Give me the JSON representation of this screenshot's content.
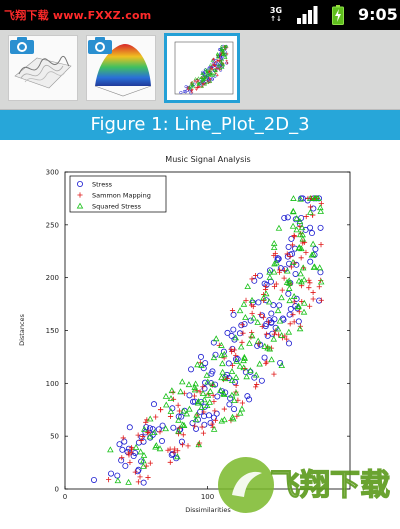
{
  "status_bar": {
    "watermark": "飞翔下载 www.FXXZ.com",
    "network": "3G",
    "time": "9:05"
  },
  "thumbnails": [
    {
      "name": "surface-plot-thumbnail",
      "icon": "camera-icon",
      "selected": false
    },
    {
      "name": "rainbow-surface-thumbnail",
      "icon": "camera-icon",
      "selected": false
    },
    {
      "name": "scatter-plot-thumbnail",
      "icon": "",
      "selected": true
    }
  ],
  "figure_title": "Figure 1: Line_Plot_2D_3",
  "watermark_badge": "飞翔下载",
  "chart_data": {
    "type": "scatter",
    "title": "Music Signal Analysis",
    "xlabel": "Dissimilarities",
    "ylabel": "Distances",
    "xlim": [
      0,
      200
    ],
    "ylim": [
      0,
      300
    ],
    "yticks": [
      "0",
      "50",
      "100",
      "150",
      "200",
      "250",
      "300"
    ],
    "xticks": [
      "0",
      "100"
    ],
    "legend": {
      "position": "top-left"
    },
    "series": [
      {
        "name": "Stress",
        "marker": "circle",
        "color": "#1a1ad0",
        "seed": 11
      },
      {
        "name": "Sammon Mapping",
        "marker": "plus",
        "color": "#e01818",
        "seed": 23
      },
      {
        "name": "Squared Stress",
        "marker": "triangle",
        "color": "#17c017",
        "seed": 37
      }
    ]
  }
}
